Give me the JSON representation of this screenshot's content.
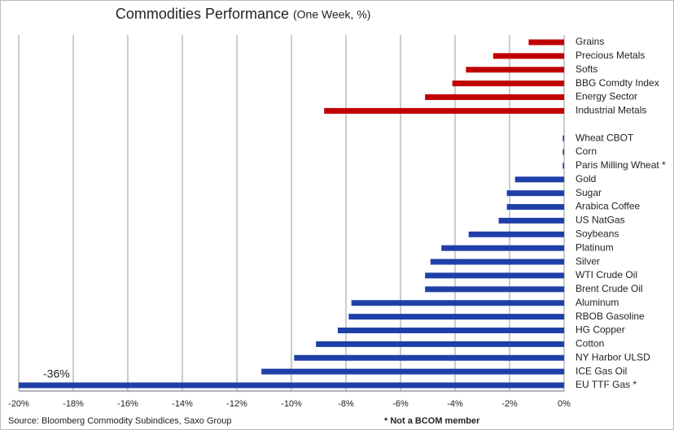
{
  "chart_data": {
    "type": "barh",
    "title": "Commodities Performance",
    "subtitle": "(One Week, %)",
    "categories": [
      "Grains",
      "Precious Metals",
      "Softs",
      "BBG Comdty Index",
      "Energy Sector",
      "Industrial Metals",
      null,
      "Wheat CBOT",
      "Corn",
      "Paris Milling Wheat *",
      "Gold",
      "Sugar",
      "Arabica Coffee",
      "US NatGas",
      "Soybeans",
      "Platinum",
      "Silver",
      "WTI Crude Oil",
      "Brent Crude Oil",
      "Aluminum",
      "RBOB Gasoline",
      "HG Copper",
      "Cotton",
      "NY Harbor ULSD",
      "ICE Gas Oil",
      "EU TTF Gas *"
    ],
    "values": [
      -1.3,
      -2.6,
      -3.6,
      -4.1,
      -5.1,
      -8.8,
      null,
      -0.05,
      -0.05,
      -0.05,
      -1.8,
      -2.1,
      -2.1,
      -2.4,
      -3.5,
      -4.5,
      -4.9,
      -5.1,
      -5.1,
      -7.8,
      -7.9,
      -8.3,
      -9.1,
      -9.9,
      -11.1,
      -36
    ],
    "value_labels": [
      null,
      null,
      null,
      null,
      null,
      null,
      null,
      null,
      null,
      null,
      null,
      null,
      null,
      null,
      null,
      null,
      null,
      null,
      null,
      null,
      null,
      null,
      null,
      null,
      null,
      "-36%"
    ],
    "colors": [
      "#c00000",
      "#c00000",
      "#c00000",
      "#c00000",
      "#c00000",
      "#c00000",
      null,
      "#1f3fa8",
      "#1f3fa8",
      "#1f3fa8",
      "#1f3fa8",
      "#1f3fa8",
      "#1f3fa8",
      "#1f3fa8",
      "#1f3fa8",
      "#1f3fa8",
      "#1f3fa8",
      "#1f3fa8",
      "#1f3fa8",
      "#1f3fa8",
      "#1f3fa8",
      "#1f3fa8",
      "#1f3fa8",
      "#1f3fa8",
      "#1f3fa8",
      "#1f3fa8"
    ],
    "xlim": [
      -20,
      0
    ],
    "xticks": [
      {
        "value": -20,
        "label": "-20%"
      },
      {
        "value": -18,
        "label": "-18%"
      },
      {
        "value": -16,
        "label": "-16%"
      },
      {
        "value": -14,
        "label": "-14%"
      },
      {
        "value": -12,
        "label": "-12%"
      },
      {
        "value": -10,
        "label": "-10%"
      },
      {
        "value": -8,
        "label": "-8%"
      },
      {
        "value": -6,
        "label": "-6%"
      },
      {
        "value": -4,
        "label": "-4%"
      },
      {
        "value": -2,
        "label": "-2%"
      },
      {
        "value": 0,
        "label": "0%"
      }
    ],
    "grid": true,
    "source": "Source: Bloomberg Commodity Subindices, Saxo Group",
    "note": "* Not a BCOM member"
  }
}
